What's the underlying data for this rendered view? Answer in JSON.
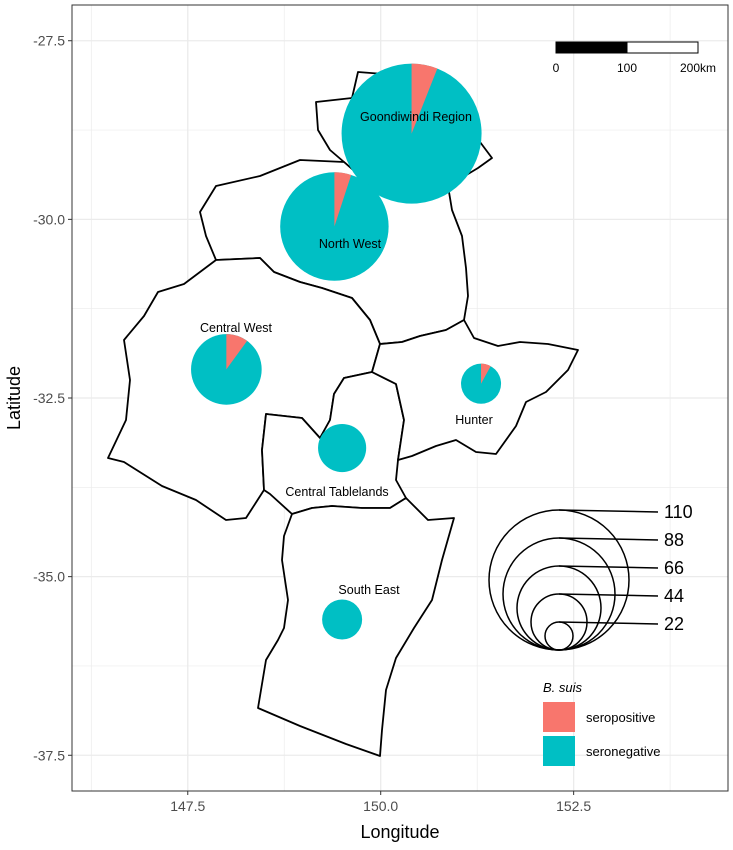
{
  "axes": {
    "xlabel": "Longitude",
    "ylabel": "Latitude",
    "xlim": [
      146.0,
      154.5
    ],
    "ylim": [
      -38.0,
      -27.0
    ],
    "x_ticks": [
      {
        "value": 147.5,
        "label": "147.5"
      },
      {
        "value": 150.0,
        "label": "150.0"
      },
      {
        "value": 152.5,
        "label": "152.5"
      }
    ],
    "y_ticks": [
      {
        "value": -27.5,
        "label": "-27.5"
      },
      {
        "value": -30.0,
        "label": "-30.0"
      },
      {
        "value": -32.5,
        "label": "-32.5"
      },
      {
        "value": -35.0,
        "label": "-35.0"
      },
      {
        "value": -37.5,
        "label": "-37.5"
      }
    ]
  },
  "scale_bar": {
    "labels": [
      "0",
      "100",
      "200km"
    ]
  },
  "size_legend": {
    "values": [
      "110",
      "88",
      "66",
      "44",
      "22"
    ]
  },
  "fill_legend": {
    "title": "B. suis",
    "items": [
      {
        "label": "seropositive",
        "color": "#F8766D"
      },
      {
        "label": "seronegative",
        "color": "#00BFC4"
      }
    ]
  },
  "colors": {
    "seropositive": "#F8766D",
    "seronegative": "#00BFC4",
    "grid": "#ebebeb",
    "panel_border": "#333333"
  },
  "regions": [
    {
      "label": "Goondiwindi Region",
      "lon": 150.4,
      "lat": -28.8,
      "total": 110,
      "seropositive_fraction": 0.06
    },
    {
      "label": "North West",
      "lon": 149.4,
      "lat": -30.1,
      "total": 66,
      "seropositive_fraction": 0.05
    },
    {
      "label": "Central West",
      "lon": 148.0,
      "lat": -32.1,
      "total": 28,
      "seropositive_fraction": 0.1
    },
    {
      "label": "Central Tablelands",
      "lon": 149.5,
      "lat": -33.2,
      "total": 13,
      "seropositive_fraction": 0.0
    },
    {
      "label": "Hunter",
      "lon": 151.3,
      "lat": -32.3,
      "total": 9,
      "seropositive_fraction": 0.08
    },
    {
      "label": "South East",
      "lon": 149.5,
      "lat": -35.6,
      "total": 9,
      "seropositive_fraction": 0.0
    }
  ]
}
